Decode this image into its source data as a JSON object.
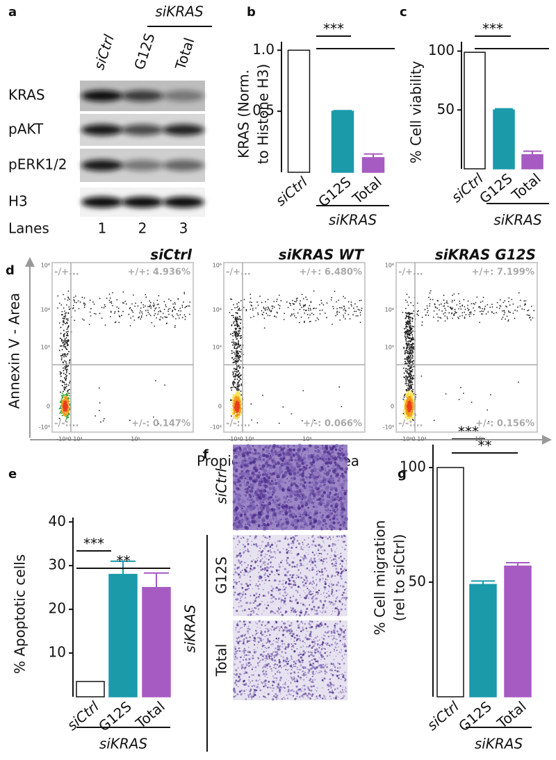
{
  "blot": {
    "label": "a",
    "group": "siKRAS",
    "lanes": [
      "siCtrl",
      "G12S",
      "Total"
    ],
    "rows": [
      "KRAS",
      "pAKT",
      "pERK1/2",
      "H3"
    ],
    "lanes_label": "Lanes",
    "lane_numbers": [
      "1",
      "2",
      "3"
    ]
  },
  "flow": {
    "label": "d",
    "y_label": "Annexin V - Area",
    "x_label": "Propidium Iodide - Area",
    "y_ticks": [
      "10⁶",
      "10⁴",
      "10³",
      "0",
      "-10³"
    ],
    "x_ticks": [
      "-10³0 10³",
      "10⁵"
    ],
    "plots": [
      {
        "title": "siCtrl",
        "quadrants": [
          "-/+...",
          "+/+: 4.936%",
          "-/-:...",
          "+/-: 0.147%"
        ]
      },
      {
        "title": "siKRAS WT",
        "quadrants": [
          "-/+...",
          "+/+: 6.480%",
          "-/-:...",
          "+/-: 0.066%"
        ]
      },
      {
        "title": "siKRAS G12S",
        "quadrants": [
          "-/+...",
          "+/+: 7.199%",
          "-/-:...",
          "+/-: 0.156%"
        ]
      }
    ]
  },
  "micro": {
    "label": "f",
    "rows": [
      "siCtrl",
      "G12S",
      "Total"
    ],
    "group": "siKRAS"
  },
  "chart_data": [
    {
      "type": "bar",
      "panel": "b",
      "y_label": [
        "KRAS (Norm.",
        "to Histone H3)"
      ],
      "categories": [
        "siCtrl",
        "G12S",
        "Total"
      ],
      "values": [
        1.0,
        0.5,
        0.12
      ],
      "errors": [
        0,
        0.005,
        0.03
      ],
      "colors": [
        "#ffffff",
        "#1b9aaa",
        "#a65bc2"
      ],
      "ylim": [
        0,
        1.07
      ],
      "yticks": [
        0.5,
        {
          "value": 1.0,
          "label": "1.0"
        }
      ],
      "group": "siKRAS",
      "significance": [
        "***"
      ]
    },
    {
      "type": "bar",
      "panel": "c",
      "y_label": [
        "% Cell viability"
      ],
      "categories": [
        "siCtrl",
        "G12S",
        "Total"
      ],
      "values": [
        99,
        50,
        12
      ],
      "errors": [
        1,
        1,
        3
      ],
      "colors": [
        "#ffffff",
        "#1b9aaa",
        "#a65bc2"
      ],
      "ylim": [
        0,
        108
      ],
      "yticks": [
        50,
        100
      ],
      "group": "siKRAS",
      "significance": [
        "***"
      ]
    },
    {
      "type": "bar",
      "panel": "e",
      "y_label": [
        "% Apoptotic cells"
      ],
      "categories": [
        "siCtrl",
        "G12S",
        "Total"
      ],
      "values": [
        3.5,
        28,
        25
      ],
      "errors": [
        0.7,
        3,
        3.3
      ],
      "colors": [
        "#ffffff",
        "#1b9aaa",
        "#a65bc2"
      ],
      "ylim": [
        0,
        41
      ],
      "yticks": [
        10,
        20,
        30,
        40
      ],
      "group": "siKRAS",
      "significance": [
        "***",
        "**"
      ]
    },
    {
      "type": "bar",
      "panel": "g",
      "y_label": [
        "% Cell migration",
        "(rel to siCtrl)"
      ],
      "categories": [
        "siCtrl",
        "G12S",
        "Total"
      ],
      "values": [
        100,
        49,
        57
      ],
      "errors": [
        4,
        1.5,
        1.5
      ],
      "colors": [
        "#ffffff",
        "#1b9aaa",
        "#a65bc2"
      ],
      "ylim": [
        0,
        110
      ],
      "yticks": [
        50,
        100
      ],
      "group": "siKRAS",
      "significance": [
        "***",
        "**"
      ]
    }
  ]
}
